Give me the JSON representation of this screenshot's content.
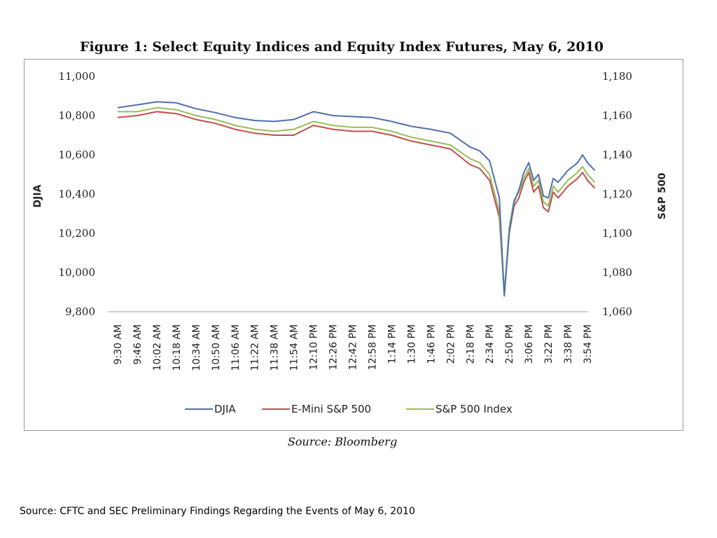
{
  "chart_data": {
    "type": "line",
    "title": "Figure 1: Select Equity Indices and Equity Index Futures, May 6, 2010",
    "ylabel_left": "DJIA",
    "ylabel_right": "S&P 500",
    "ylim_left": [
      9800,
      11000
    ],
    "ylim_right": [
      1060,
      1180
    ],
    "yticks_left": [
      "11,000",
      "10,800",
      "10,600",
      "10,400",
      "10,200",
      "10,000",
      "9,800"
    ],
    "yticks_right": [
      "1,180",
      "1,160",
      "1,140",
      "1,120",
      "1,100",
      "1,080",
      "1,060"
    ],
    "x_ticks": [
      "9:30 AM",
      "9:46 AM",
      "10:02 AM",
      "10:18 AM",
      "10:34 AM",
      "10:50 AM",
      "11:06 AM",
      "11:22 AM",
      "11:38 AM",
      "11:54 AM",
      "12:10 PM",
      "12:26 PM",
      "12:42 PM",
      "12:58 PM",
      "1:14 PM",
      "1:30 PM",
      "1:46 PM",
      "2:02 PM",
      "2:18 PM",
      "2:34 PM",
      "2:50 PM",
      "3:06 PM",
      "3:22 PM",
      "3:38 PM",
      "3:54 PM"
    ],
    "legend_position": "bottom",
    "grid": false,
    "series": [
      {
        "name": "DJIA",
        "axis": "left",
        "color": "#4f6fae",
        "x": [
          "9:30 AM",
          "9:46 AM",
          "10:02 AM",
          "10:18 AM",
          "10:34 AM",
          "10:50 AM",
          "11:06 AM",
          "11:22 AM",
          "11:38 AM",
          "11:54 AM",
          "12:10 PM",
          "12:26 PM",
          "12:42 PM",
          "12:58 PM",
          "1:14 PM",
          "1:30 PM",
          "1:46 PM",
          "2:02 PM",
          "2:18 PM",
          "2:26 PM",
          "2:34 PM",
          "2:42 PM",
          "2:46 PM",
          "2:50 PM",
          "2:54 PM",
          "2:58 PM",
          "3:02 PM",
          "3:06 PM",
          "3:10 PM",
          "3:14 PM",
          "3:18 PM",
          "3:22 PM",
          "3:26 PM",
          "3:30 PM",
          "3:38 PM",
          "3:46 PM",
          "3:50 PM",
          "3:54 PM",
          "4:00 PM"
        ],
        "y": [
          10840,
          10855,
          10870,
          10865,
          10835,
          10815,
          10790,
          10775,
          10770,
          10780,
          10820,
          10800,
          10795,
          10790,
          10770,
          10745,
          10730,
          10710,
          10640,
          10620,
          10570,
          10380,
          9880,
          10200,
          10360,
          10420,
          10510,
          10560,
          10470,
          10500,
          10390,
          10380,
          10480,
          10460,
          10520,
          10560,
          10600,
          10560,
          10520
        ]
      },
      {
        "name": "E-Mini S&P 500",
        "axis": "right",
        "color": "#c0504d",
        "x": [
          "9:30 AM",
          "9:46 AM",
          "10:02 AM",
          "10:18 AM",
          "10:34 AM",
          "10:50 AM",
          "11:06 AM",
          "11:22 AM",
          "11:38 AM",
          "11:54 AM",
          "12:10 PM",
          "12:26 PM",
          "12:42 PM",
          "12:58 PM",
          "1:14 PM",
          "1:30 PM",
          "1:46 PM",
          "2:02 PM",
          "2:18 PM",
          "2:26 PM",
          "2:34 PM",
          "2:42 PM",
          "2:46 PM",
          "2:50 PM",
          "2:54 PM",
          "2:58 PM",
          "3:02 PM",
          "3:06 PM",
          "3:10 PM",
          "3:14 PM",
          "3:18 PM",
          "3:22 PM",
          "3:26 PM",
          "3:30 PM",
          "3:38 PM",
          "3:46 PM",
          "3:50 PM",
          "3:54 PM",
          "4:00 PM"
        ],
        "y": [
          1159,
          1160,
          1162,
          1161,
          1158,
          1156,
          1153,
          1151,
          1150,
          1150,
          1155,
          1153,
          1152,
          1152,
          1150,
          1147,
          1145,
          1143,
          1135,
          1133,
          1127,
          1108,
          1069,
          1100,
          1114,
          1118,
          1126,
          1131,
          1121,
          1124,
          1113,
          1111,
          1121,
          1118,
          1124,
          1128,
          1131,
          1127,
          1123
        ]
      },
      {
        "name": "S&P 500 Index",
        "axis": "right",
        "color": "#9bbb59",
        "x": [
          "9:30 AM",
          "9:46 AM",
          "10:02 AM",
          "10:18 AM",
          "10:34 AM",
          "10:50 AM",
          "11:06 AM",
          "11:22 AM",
          "11:38 AM",
          "11:54 AM",
          "12:10 PM",
          "12:26 PM",
          "12:42 PM",
          "12:58 PM",
          "1:14 PM",
          "1:30 PM",
          "1:46 PM",
          "2:02 PM",
          "2:18 PM",
          "2:26 PM",
          "2:34 PM",
          "2:42 PM",
          "2:46 PM",
          "2:50 PM",
          "2:54 PM",
          "2:58 PM",
          "3:02 PM",
          "3:06 PM",
          "3:10 PM",
          "3:14 PM",
          "3:18 PM",
          "3:22 PM",
          "3:26 PM",
          "3:30 PM",
          "3:38 PM",
          "3:46 PM",
          "3:50 PM",
          "3:54 PM",
          "4:00 PM"
        ],
        "y": [
          1162,
          1162,
          1164,
          1163,
          1160,
          1158,
          1155,
          1153,
          1152,
          1153,
          1157,
          1155,
          1154,
          1154,
          1152,
          1149,
          1147,
          1145,
          1138,
          1136,
          1130,
          1111,
          1069,
          1103,
          1117,
          1121,
          1128,
          1133,
          1124,
          1127,
          1116,
          1114,
          1124,
          1121,
          1127,
          1131,
          1134,
          1130,
          1126
        ]
      }
    ]
  },
  "source_caption": "Source: Bloomberg",
  "footer_source": "Source: CFTC and SEC Preliminary Findings Regarding the Events of May 6, 2010"
}
